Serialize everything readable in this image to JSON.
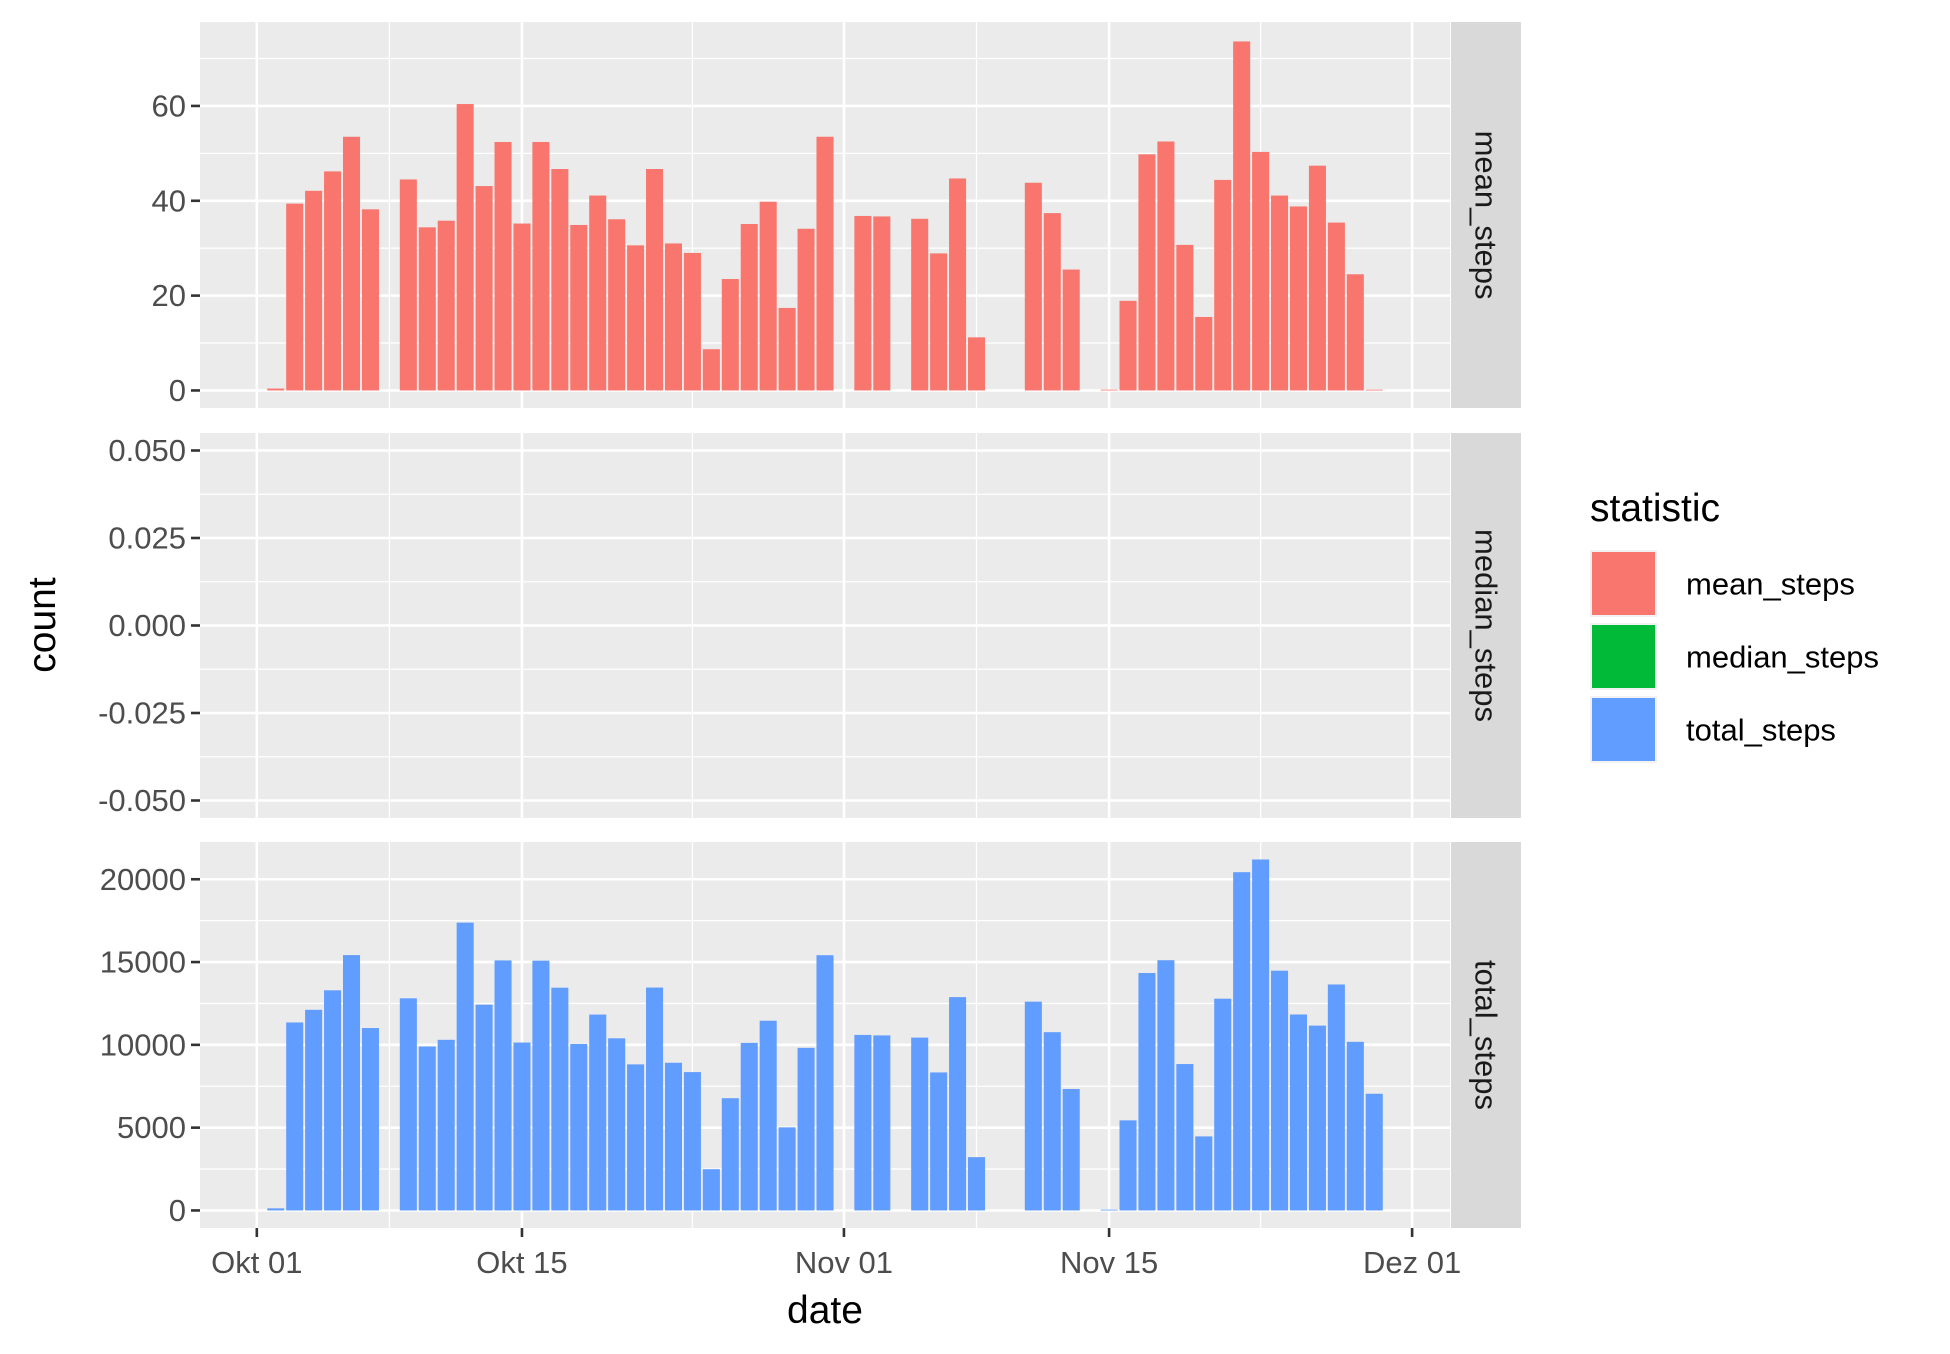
{
  "chart_data": {
    "type": "bar",
    "facet_layout": "vertical",
    "facets": [
      {
        "name": "mean_steps",
        "ylim": [
          -3.7,
          77.7
        ],
        "yticks": [
          0,
          20,
          40,
          60
        ],
        "ytick_labels": [
          "0",
          "20",
          "40",
          "60"
        ],
        "x": [
          "2012-10-02",
          "2012-10-03",
          "2012-10-04",
          "2012-10-05",
          "2012-10-06",
          "2012-10-07",
          "2012-10-09",
          "2012-10-10",
          "2012-10-11",
          "2012-10-12",
          "2012-10-13",
          "2012-10-14",
          "2012-10-15",
          "2012-10-16",
          "2012-10-17",
          "2012-10-18",
          "2012-10-19",
          "2012-10-20",
          "2012-10-21",
          "2012-10-22",
          "2012-10-23",
          "2012-10-24",
          "2012-10-25",
          "2012-10-26",
          "2012-10-27",
          "2012-10-28",
          "2012-10-29",
          "2012-10-30",
          "2012-10-31",
          "2012-11-02",
          "2012-11-03",
          "2012-11-05",
          "2012-11-06",
          "2012-11-07",
          "2012-11-08",
          "2012-11-11",
          "2012-11-12",
          "2012-11-13",
          "2012-11-15",
          "2012-11-16",
          "2012-11-17",
          "2012-11-18",
          "2012-11-19",
          "2012-11-20",
          "2012-11-21",
          "2012-11-22",
          "2012-11-23",
          "2012-11-24",
          "2012-11-25",
          "2012-11-26",
          "2012-11-27",
          "2012-11-28",
          "2012-11-29"
        ],
        "values": [
          0.4,
          39.4,
          42.1,
          46.2,
          53.5,
          38.2,
          44.5,
          34.4,
          35.8,
          60.4,
          43.1,
          52.4,
          35.2,
          52.4,
          46.7,
          34.9,
          41.1,
          36.1,
          30.6,
          46.7,
          31.0,
          29.0,
          8.7,
          23.5,
          35.1,
          39.8,
          17.4,
          34.1,
          53.5,
          36.8,
          36.7,
          36.2,
          28.9,
          44.7,
          11.2,
          43.8,
          37.4,
          25.5,
          0.1,
          18.9,
          49.8,
          52.5,
          30.7,
          15.5,
          44.4,
          73.6,
          50.3,
          41.1,
          38.8,
          47.4,
          35.4,
          24.5,
          0.0
        ],
        "color": "#F8766D"
      },
      {
        "name": "median_steps",
        "ylim": [
          -0.055,
          0.055
        ],
        "yticks": [
          -0.05,
          -0.025,
          0,
          0.025,
          0.05
        ],
        "ytick_labels": [
          "-0.050",
          "-0.025",
          "0.000",
          "0.025",
          "0.050"
        ],
        "x": [],
        "values": [],
        "color": "#00BA38"
      },
      {
        "name": "total_steps",
        "ylim": [
          -1060,
          22250
        ],
        "yticks": [
          0,
          5000,
          10000,
          15000,
          20000
        ],
        "ytick_labels": [
          "0",
          "5000",
          "10000",
          "15000",
          "20000"
        ],
        "x": [
          "2012-10-02",
          "2012-10-03",
          "2012-10-04",
          "2012-10-05",
          "2012-10-06",
          "2012-10-07",
          "2012-10-09",
          "2012-10-10",
          "2012-10-11",
          "2012-10-12",
          "2012-10-13",
          "2012-10-14",
          "2012-10-15",
          "2012-10-16",
          "2012-10-17",
          "2012-10-18",
          "2012-10-19",
          "2012-10-20",
          "2012-10-21",
          "2012-10-22",
          "2012-10-23",
          "2012-10-24",
          "2012-10-25",
          "2012-10-26",
          "2012-10-27",
          "2012-10-28",
          "2012-10-29",
          "2012-10-30",
          "2012-10-31",
          "2012-11-02",
          "2012-11-03",
          "2012-11-05",
          "2012-11-06",
          "2012-11-07",
          "2012-11-08",
          "2012-11-11",
          "2012-11-12",
          "2012-11-13",
          "2012-11-15",
          "2012-11-16",
          "2012-11-17",
          "2012-11-18",
          "2012-11-19",
          "2012-11-20",
          "2012-11-21",
          "2012-11-22",
          "2012-11-23",
          "2012-11-24",
          "2012-11-25",
          "2012-11-26",
          "2012-11-27",
          "2012-11-28",
          "2012-11-29"
        ],
        "values": [
          126,
          11352,
          12116,
          13294,
          15420,
          11015,
          12811,
          9900,
          10304,
          17382,
          12426,
          15098,
          10139,
          15084,
          13452,
          10056,
          11829,
          10395,
          8821,
          13460,
          8918,
          8355,
          2492,
          6778,
          10119,
          11458,
          5018,
          9819,
          15414,
          10600,
          10571,
          10439,
          8334,
          12883,
          3219,
          12608,
          10765,
          7336,
          41,
          5441,
          14339,
          15110,
          8841,
          4472,
          12787,
          20427,
          21194,
          14478,
          11834,
          11162,
          13646,
          10183,
          7047
        ],
        "color": "#619CFF"
      }
    ],
    "x_axis": {
      "range": [
        "2012-09-28",
        "2012-12-03"
      ],
      "tick_dates": [
        "2012-10-01",
        "2012-10-15",
        "2012-11-01",
        "2012-11-15",
        "2012-12-01"
      ],
      "tick_labels": [
        "Okt 01",
        "Okt 15",
        "Nov 01",
        "Nov 15",
        "Dez 01"
      ],
      "minor_tick_dates": [
        "2012-10-08",
        "2012-10-24",
        "2012-11-08",
        "2012-11-23"
      ]
    },
    "xlabel": "date",
    "ylabel": "count",
    "legend": {
      "title": "statistic",
      "position": "right",
      "entries": [
        {
          "label": "mean_steps",
          "color": "#F8766D"
        },
        {
          "label": "median_steps",
          "color": "#00BA38"
        },
        {
          "label": "total_steps",
          "color": "#619CFF"
        }
      ]
    },
    "grid": true,
    "panel_background": "#EBEBEB",
    "strip_background": "#D9D9D9",
    "grid_color": "#FFFFFF"
  }
}
